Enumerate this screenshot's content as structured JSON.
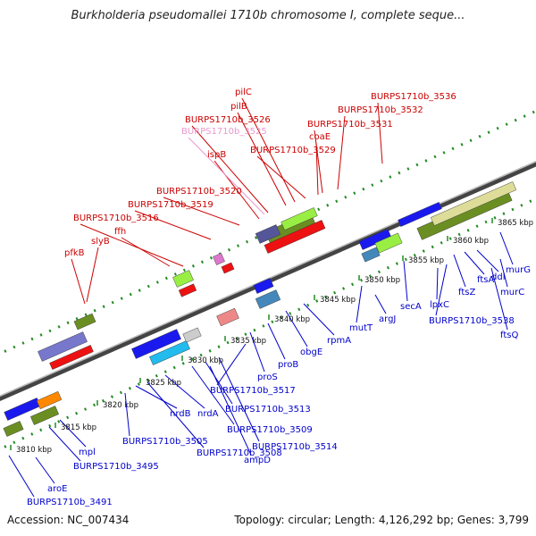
{
  "title": "Burkholderia pseudomallei 1710b chromosome I, complete seque...",
  "footer": {
    "accession": "Accession: NC_007434",
    "summary": "Topology: circular; Length: 4,126,292 bp; Genes: 3,799"
  },
  "colors": {
    "forward_label": "#cc0000",
    "reverse_label": "#0000cc",
    "highlight_label": "#e899cc",
    "backbone": "#888888",
    "forward_gene": "#ee1111",
    "reverse_gene": "#1a1aee",
    "tick": "#228b22"
  },
  "kbp_labels": [
    "3810 kbp",
    "3815 kbp",
    "3820 kbp",
    "3825 kbp",
    "3830 kbp",
    "3835 kbp",
    "3840 kbp",
    "3845 kbp",
    "3850 kbp",
    "3855 kbp",
    "3860 kbp",
    "3865 kbp"
  ],
  "top_labels": [
    "pfkB",
    "slyB",
    "ffh",
    "BURPS1710b_3516",
    "BURPS1710b_3519",
    "BURPS1710b_3520",
    "ispB",
    "BURPS1710b_3525",
    "BURPS1710b_3526",
    "pilB",
    "pilC",
    "BURPS1710b_3529",
    "coaE",
    "BURPS1710b_3531",
    "BURPS1710b_3532",
    "BURPS1710b_3536"
  ],
  "bottom_labels": [
    "BURPS1710b_3491",
    "aroE",
    "BURPS1710b_3495",
    "mpl",
    "BURPS1710b_3505",
    "nrdB",
    "BURPS1710b_3508",
    "nrdA",
    "BURPS1710b_3509",
    "BURPS1710b_3513",
    "BURPS1710b_3514",
    "ampD",
    "BURPS1710b_3517",
    "proS",
    "proB",
    "obgE",
    "rpmA",
    "mutT",
    "argJ",
    "secA",
    "lpxC",
    "BURPS1710b_3538",
    "ftsZ",
    "ftsA",
    "ddl",
    "ftsQ",
    "murC",
    "murG"
  ]
}
